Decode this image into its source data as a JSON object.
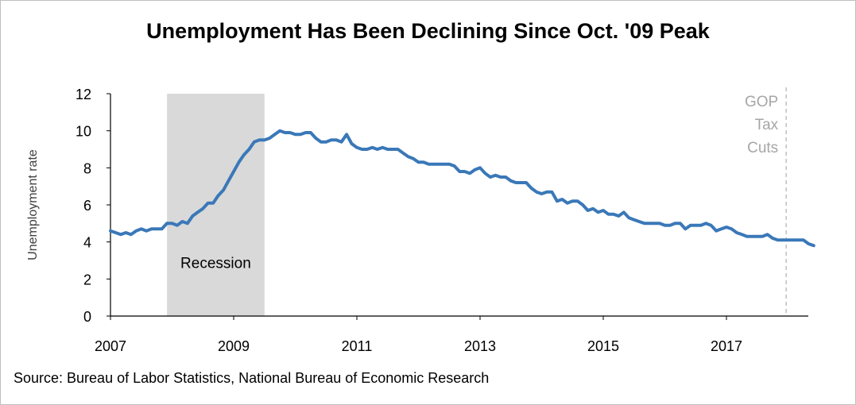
{
  "title": "Unemployment Has Been Declining Since Oct. '09 Peak",
  "source": "Source: Bureau of Labor Statistics, National Bureau of Economic Research",
  "colors": {
    "line": "#3a78b8",
    "recession_fill": "#d9d9d9",
    "annotation_line": "#bfbfbf",
    "annotation_text": "#a6a6a6",
    "axis": "#000000"
  },
  "chart_data": {
    "type": "line",
    "title": "Unemployment Has Been Declining Since Oct. '09 Peak",
    "xlabel": "",
    "ylabel": "Unemployment rate",
    "xlim": [
      2007,
      2018.4
    ],
    "ylim": [
      0,
      12
    ],
    "yticks": [
      0,
      2,
      4,
      6,
      8,
      10,
      12
    ],
    "xticks": [
      2007,
      2009,
      2011,
      2013,
      2015,
      2017
    ],
    "grid": false,
    "legend": "none",
    "series": [
      {
        "name": "",
        "start_year": 2007,
        "frequency": "monthly",
        "values": [
          4.6,
          4.5,
          4.4,
          4.5,
          4.4,
          4.6,
          4.7,
          4.6,
          4.7,
          4.7,
          4.7,
          5.0,
          5.0,
          4.9,
          5.1,
          5.0,
          5.4,
          5.6,
          5.8,
          6.1,
          6.1,
          6.5,
          6.8,
          7.3,
          7.8,
          8.3,
          8.7,
          9.0,
          9.4,
          9.5,
          9.5,
          9.6,
          9.8,
          10.0,
          9.9,
          9.9,
          9.8,
          9.8,
          9.9,
          9.9,
          9.6,
          9.4,
          9.4,
          9.5,
          9.5,
          9.4,
          9.8,
          9.3,
          9.1,
          9.0,
          9.0,
          9.1,
          9.0,
          9.1,
          9.0,
          9.0,
          9.0,
          8.8,
          8.6,
          8.5,
          8.3,
          8.3,
          8.2,
          8.2,
          8.2,
          8.2,
          8.2,
          8.1,
          7.8,
          7.8,
          7.7,
          7.9,
          8.0,
          7.7,
          7.5,
          7.6,
          7.5,
          7.5,
          7.3,
          7.2,
          7.2,
          7.2,
          6.9,
          6.7,
          6.6,
          6.7,
          6.7,
          6.2,
          6.3,
          6.1,
          6.2,
          6.2,
          6.0,
          5.7,
          5.8,
          5.6,
          5.7,
          5.5,
          5.5,
          5.4,
          5.6,
          5.3,
          5.2,
          5.1,
          5.0,
          5.0,
          5.0,
          5.0,
          4.9,
          4.9,
          5.0,
          5.0,
          4.7,
          4.9,
          4.9,
          4.9,
          5.0,
          4.9,
          4.6,
          4.7,
          4.8,
          4.7,
          4.5,
          4.4,
          4.3,
          4.3,
          4.3,
          4.3,
          4.4,
          4.2,
          4.1,
          4.1,
          4.1,
          4.1,
          4.1,
          4.1,
          3.9,
          3.8
        ]
      }
    ],
    "recession": {
      "label": "Recession",
      "start": 2007.917,
      "end": 2009.5
    },
    "annotation": {
      "lines": [
        "GOP",
        "Tax",
        "Cuts"
      ],
      "x": 2017.97
    }
  }
}
